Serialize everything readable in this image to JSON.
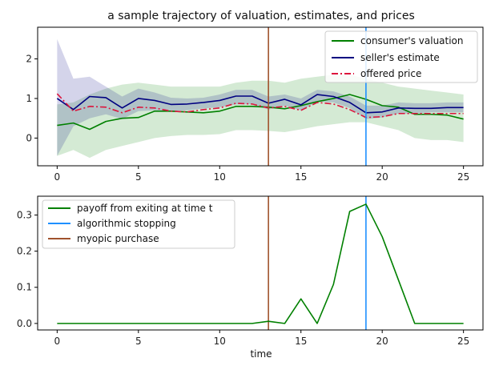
{
  "chart_data": [
    {
      "type": "line",
      "title": "a sample trajectory of valuation, estimates, and prices",
      "xlabel": "",
      "ylabel": "",
      "xlim": [
        -1.2,
        26.2
      ],
      "ylim": [
        -0.7,
        2.8
      ],
      "xticks": [
        0,
        5,
        10,
        15,
        20,
        25
      ],
      "yticks": [
        0,
        1,
        2
      ],
      "legend_position": "top-right",
      "x": [
        0,
        1,
        2,
        3,
        4,
        5,
        6,
        7,
        8,
        9,
        10,
        11,
        12,
        13,
        14,
        15,
        16,
        17,
        18,
        19,
        20,
        21,
        22,
        23,
        24,
        25
      ],
      "series": [
        {
          "name": "consumer's valuation",
          "color": "#008000",
          "style": "solid",
          "values": [
            0.32,
            0.38,
            0.22,
            0.42,
            0.5,
            0.52,
            0.68,
            0.68,
            0.66,
            0.64,
            0.68,
            0.8,
            0.8,
            0.78,
            0.74,
            0.82,
            0.92,
            1.0,
            1.1,
            0.98,
            0.82,
            0.78,
            0.6,
            0.6,
            0.58,
            0.48
          ]
        },
        {
          "name": "seller's estimate",
          "color": "#000080",
          "style": "solid",
          "values": [
            1.0,
            0.72,
            1.05,
            1.02,
            0.76,
            1.0,
            0.95,
            0.85,
            0.86,
            0.9,
            0.95,
            1.06,
            1.06,
            0.88,
            0.98,
            0.84,
            1.1,
            1.05,
            0.9,
            0.64,
            0.66,
            0.76,
            0.75,
            0.75,
            0.77,
            0.77
          ]
        },
        {
          "name": "offered price",
          "color": "#dc143c",
          "style": "dashdot",
          "values": [
            1.12,
            0.68,
            0.8,
            0.78,
            0.64,
            0.78,
            0.76,
            0.68,
            0.66,
            0.72,
            0.76,
            0.88,
            0.86,
            0.76,
            0.8,
            0.7,
            0.9,
            0.86,
            0.72,
            0.52,
            0.54,
            0.62,
            0.62,
            0.62,
            0.62,
            0.62
          ]
        }
      ],
      "bands": [
        {
          "name": "valuation band",
          "color": "#008000",
          "lower": [
            -0.45,
            -0.3,
            -0.5,
            -0.3,
            -0.2,
            -0.1,
            0.0,
            0.05,
            0.08,
            0.08,
            0.1,
            0.2,
            0.2,
            0.18,
            0.15,
            0.22,
            0.3,
            0.35,
            0.4,
            0.4,
            0.3,
            0.2,
            0.0,
            -0.05,
            -0.05,
            -0.1
          ],
          "upper": [
            0.85,
            0.9,
            1.1,
            1.25,
            1.35,
            1.4,
            1.35,
            1.3,
            1.3,
            1.3,
            1.3,
            1.4,
            1.45,
            1.45,
            1.4,
            1.5,
            1.55,
            1.6,
            1.6,
            1.5,
            1.4,
            1.3,
            1.25,
            1.2,
            1.15,
            1.1
          ]
        },
        {
          "name": "estimate band",
          "color": "#000080",
          "lower": [
            -0.45,
            0.3,
            0.5,
            0.6,
            0.48,
            0.68,
            0.7,
            0.68,
            0.7,
            0.75,
            0.78,
            0.85,
            0.85,
            0.72,
            0.82,
            0.7,
            0.92,
            0.9,
            0.76,
            0.48,
            0.52,
            0.62,
            0.62,
            0.65,
            0.65,
            0.65
          ],
          "upper": [
            2.5,
            1.5,
            1.55,
            1.3,
            1.05,
            1.25,
            1.15,
            1.02,
            1.0,
            1.02,
            1.1,
            1.22,
            1.22,
            1.05,
            1.1,
            1.0,
            1.22,
            1.18,
            1.05,
            0.82,
            0.82,
            0.9,
            0.88,
            0.88,
            0.9,
            0.9
          ]
        }
      ],
      "vlines": [
        {
          "x": 13,
          "color": "#a0522d"
        },
        {
          "x": 19,
          "color": "#1e90ff"
        }
      ]
    },
    {
      "type": "line",
      "title": "",
      "xlabel": "time",
      "ylabel": "",
      "xlim": [
        -1.2,
        26.2
      ],
      "ylim": [
        -0.018,
        0.352
      ],
      "xticks": [
        0,
        5,
        10,
        15,
        20,
        25
      ],
      "yticks": [
        0.0,
        0.1,
        0.2,
        0.3
      ],
      "ytick_labels": [
        "0.0",
        "0.1",
        "0.2",
        "0.3"
      ],
      "legend_position": "top-left",
      "x": [
        0,
        1,
        2,
        3,
        4,
        5,
        6,
        7,
        8,
        9,
        10,
        11,
        12,
        13,
        14,
        15,
        16,
        17,
        18,
        19,
        20,
        21,
        22,
        23,
        24,
        25
      ],
      "series": [
        {
          "name": "payoff from exiting at time t",
          "color": "#008000",
          "style": "solid",
          "values": [
            0,
            0,
            0,
            0,
            0,
            0,
            0,
            0,
            0,
            0,
            0,
            0,
            0,
            0.006,
            0,
            0.068,
            0,
            0.108,
            0.31,
            0.33,
            0.24,
            0.12,
            0,
            0,
            0,
            0
          ]
        }
      ],
      "vline_legend": [
        {
          "name": "algorithmic stopping",
          "color": "#1e90ff",
          "x": 19
        },
        {
          "name": "myopic purchase",
          "color": "#a0522d",
          "x": 13
        }
      ]
    }
  ]
}
